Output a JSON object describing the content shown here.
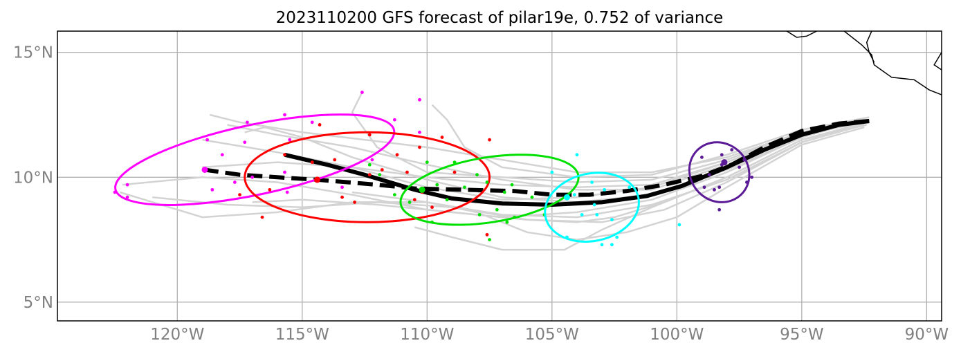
{
  "chart_data": {
    "type": "map",
    "title": "2023110200 GFS forecast of pilar19e, 0.752 of variance",
    "xlim": [
      -124.8,
      -89.4
    ],
    "ylim": [
      4.25,
      15.85
    ],
    "xticks": [
      {
        "value": -120,
        "label": "120°W"
      },
      {
        "value": -115,
        "label": "115°W"
      },
      {
        "value": -110,
        "label": "110°W"
      },
      {
        "value": -105,
        "label": "105°W"
      },
      {
        "value": -100,
        "label": "100°W"
      },
      {
        "value": -95,
        "label": "95°W"
      },
      {
        "value": -90,
        "label": "90°W"
      }
    ],
    "yticks": [
      {
        "value": 5,
        "label": "5°N"
      },
      {
        "value": 10,
        "label": "10°N"
      },
      {
        "value": 15,
        "label": "15°N"
      }
    ],
    "grid": true,
    "colors": {
      "members": "#d3d3d3",
      "tracks": "#000000",
      "clusters": [
        "#ff00ff",
        "#ff0000",
        "#00e000",
        "#00ffff",
        "#5b1a96"
      ]
    },
    "coastline": [
      [
        [
          -95.6,
          15.85
        ],
        [
          -95.2,
          15.6
        ],
        [
          -94.8,
          15.65
        ],
        [
          -94.4,
          15.85
        ]
      ],
      [
        [
          -93.3,
          15.85
        ],
        [
          -92.6,
          15.3
        ],
        [
          -92.2,
          14.9
        ],
        [
          -92.1,
          14.5
        ],
        [
          -91.4,
          14.0
        ],
        [
          -90.5,
          13.9
        ],
        [
          -89.9,
          13.5
        ],
        [
          -89.4,
          13.3
        ]
      ],
      [
        [
          -92.2,
          15.85
        ],
        [
          -92.4,
          15.4
        ],
        [
          -92.3,
          15.0
        ],
        [
          -92.1,
          14.6
        ]
      ],
      [
        [
          -89.4,
          15.0
        ],
        [
          -89.7,
          14.5
        ],
        [
          -89.4,
          14.3
        ]
      ]
    ],
    "mean_track": [
      [
        -92.3,
        12.25
      ],
      [
        -93.5,
        12.1
      ],
      [
        -95.0,
        11.7
      ],
      [
        -96.5,
        11.1
      ],
      [
        -98.0,
        10.4
      ],
      [
        -99.8,
        9.65
      ],
      [
        -101.2,
        9.25
      ],
      [
        -103.0,
        9.0
      ],
      [
        -105.0,
        8.9
      ],
      [
        -107.0,
        8.95
      ],
      [
        -109.0,
        9.15
      ],
      [
        -110.5,
        9.5
      ],
      [
        -112.5,
        10.1
      ],
      [
        -114.0,
        10.5
      ],
      [
        -115.7,
        10.9
      ]
    ],
    "operational_track": [
      [
        -92.3,
        12.25
      ],
      [
        -93.5,
        12.15
      ],
      [
        -95.0,
        11.85
      ],
      [
        -96.5,
        11.2
      ],
      [
        -97.8,
        10.5
      ],
      [
        -99.0,
        10.05
      ],
      [
        -100.5,
        9.7
      ],
      [
        -102.0,
        9.45
      ],
      [
        -103.5,
        9.3
      ],
      [
        -105.0,
        9.3
      ],
      [
        -106.5,
        9.45
      ],
      [
        -108.5,
        9.5
      ],
      [
        -110.5,
        9.55
      ],
      [
        -112.0,
        9.7
      ],
      [
        -114.4,
        9.9
      ],
      [
        -116.0,
        10.0
      ],
      [
        -117.5,
        10.1
      ],
      [
        -118.9,
        10.3
      ]
    ],
    "ensemble_members": [
      [
        [
          -92.5,
          12.2
        ],
        [
          -95,
          11.8
        ],
        [
          -98,
          10.6
        ],
        [
          -101,
          9.6
        ],
        [
          -104,
          9.2
        ],
        [
          -107,
          9.1
        ],
        [
          -110,
          9.6
        ],
        [
          -113,
          10.4
        ],
        [
          -116,
          11.0
        ],
        [
          -119,
          11.5
        ]
      ],
      [
        [
          -92.5,
          12.3
        ],
        [
          -95,
          11.6
        ],
        [
          -98,
          10.2
        ],
        [
          -101,
          9.1
        ],
        [
          -104,
          8.6
        ],
        [
          -107,
          8.4
        ],
        [
          -110,
          8.7
        ],
        [
          -113,
          9.3
        ],
        [
          -116,
          9.8
        ],
        [
          -119,
          10.0
        ],
        [
          -122.2,
          9.7
        ]
      ],
      [
        [
          -92.4,
          12.1
        ],
        [
          -95,
          11.5
        ],
        [
          -98,
          10.0
        ],
        [
          -101,
          8.8
        ],
        [
          -103,
          7.9
        ],
        [
          -104.5,
          7.1
        ],
        [
          -107,
          7.1
        ],
        [
          -109,
          7.6
        ],
        [
          -110.5,
          8.0
        ]
      ],
      [
        [
          -92.6,
          12.2
        ],
        [
          -95,
          11.7
        ],
        [
          -98,
          10.5
        ],
        [
          -101,
          9.5
        ],
        [
          -104,
          9.5
        ],
        [
          -107,
          9.9
        ],
        [
          -110,
          10.5
        ],
        [
          -113,
          11.2
        ],
        [
          -116,
          11.7
        ],
        [
          -118,
          12.1
        ]
      ],
      [
        [
          -92.3,
          12.4
        ],
        [
          -95,
          11.9
        ],
        [
          -98,
          10.9
        ],
        [
          -101,
          10.1
        ],
        [
          -104,
          10.0
        ],
        [
          -107,
          10.4
        ],
        [
          -108.5,
          11.2
        ],
        [
          -109.2,
          12.3
        ],
        [
          -109.8,
          12.9
        ]
      ],
      [
        [
          -92.5,
          12.0
        ],
        [
          -95,
          11.3
        ],
        [
          -98,
          9.6
        ],
        [
          -100,
          8.4
        ],
        [
          -102,
          7.8
        ],
        [
          -104,
          7.5
        ],
        [
          -106,
          7.8
        ],
        [
          -108,
          8.6
        ],
        [
          -110,
          9.0
        ],
        [
          -113,
          9.4
        ]
      ],
      [
        [
          -92.4,
          12.3
        ],
        [
          -95,
          11.8
        ],
        [
          -98,
          10.7
        ],
        [
          -101,
          9.9
        ],
        [
          -104,
          9.8
        ],
        [
          -107,
          10.0
        ],
        [
          -110,
          10.2
        ],
        [
          -112,
          11.2
        ],
        [
          -113,
          12.6
        ],
        [
          -112.6,
          13.4
        ]
      ],
      [
        [
          -92.5,
          12.1
        ],
        [
          -95,
          11.4
        ],
        [
          -98,
          9.9
        ],
        [
          -101,
          8.9
        ],
        [
          -104,
          8.4
        ],
        [
          -107,
          8.5
        ],
        [
          -110,
          9.0
        ],
        [
          -113,
          9.0
        ],
        [
          -116,
          8.6
        ],
        [
          -119,
          8.4
        ],
        [
          -122.3,
          9.4
        ]
      ],
      [
        [
          -92.6,
          12.3
        ],
        [
          -95,
          11.6
        ],
        [
          -98,
          10.3
        ],
        [
          -101,
          9.3
        ],
        [
          -104,
          9.0
        ],
        [
          -107,
          9.2
        ],
        [
          -110,
          9.9
        ],
        [
          -113,
          10.8
        ],
        [
          -115,
          11.6
        ],
        [
          -116.5,
          12.0
        ],
        [
          -117.3,
          11.8
        ]
      ],
      [
        [
          -92.4,
          12.2
        ],
        [
          -95,
          11.5
        ],
        [
          -98,
          10.0
        ],
        [
          -100.5,
          9.0
        ],
        [
          -102.5,
          8.4
        ],
        [
          -104,
          8.2
        ],
        [
          -106,
          8.3
        ],
        [
          -109,
          8.8
        ],
        [
          -112,
          9.0
        ],
        [
          -115,
          8.8
        ],
        [
          -118,
          8.9
        ],
        [
          -121,
          9.2
        ]
      ],
      [
        [
          -92.5,
          12.2
        ],
        [
          -95,
          11.7
        ],
        [
          -98,
          10.6
        ],
        [
          -101,
          9.7
        ],
        [
          -104,
          9.6
        ],
        [
          -107,
          9.7
        ],
        [
          -110,
          10.0
        ],
        [
          -113,
          10.4
        ],
        [
          -116,
          10.6
        ],
        [
          -119,
          10.4
        ]
      ],
      [
        [
          -92.5,
          12.1
        ],
        [
          -95,
          11.4
        ],
        [
          -98,
          9.8
        ],
        [
          -100.5,
          8.7
        ],
        [
          -103,
          8.2
        ],
        [
          -106,
          8.3
        ],
        [
          -109,
          8.6
        ],
        [
          -112,
          8.9
        ],
        [
          -115,
          9.1
        ],
        [
          -117,
          9.0
        ]
      ],
      [
        [
          -92.3,
          12.3
        ],
        [
          -95,
          11.8
        ],
        [
          -98,
          10.8
        ],
        [
          -101,
          10.2
        ],
        [
          -104,
          10.2
        ],
        [
          -107,
          10.7
        ],
        [
          -110,
          11.2
        ],
        [
          -112.5,
          11.5
        ],
        [
          -115,
          11.8
        ],
        [
          -117.5,
          12.2
        ],
        [
          -118.7,
          12.5
        ]
      ]
    ],
    "clusters": [
      {
        "cx": -116.9,
        "cy": 10.7,
        "rx": 5.7,
        "ry": 1.4,
        "angle": 12,
        "center": [
          -118.9,
          10.3
        ],
        "points": [
          [
            -122.0,
            9.7
          ],
          [
            -122.5,
            9.4
          ],
          [
            -122.0,
            9.2
          ],
          [
            -118.8,
            11.5
          ],
          [
            -117.2,
            12.2
          ],
          [
            -117.3,
            11.4
          ],
          [
            -118.2,
            10.9
          ],
          [
            -117.7,
            9.8
          ],
          [
            -117.0,
            10.0
          ],
          [
            -115.5,
            11.5
          ],
          [
            -115.7,
            12.5
          ],
          [
            -115.7,
            10.2
          ],
          [
            -114.6,
            12.2
          ],
          [
            -118.6,
            9.5
          ],
          [
            -112.6,
            13.4
          ],
          [
            -111.3,
            12.3
          ],
          [
            -110.3,
            11.8
          ],
          [
            -110.3,
            13.1
          ],
          [
            -112.2,
            10.7
          ],
          [
            -115.6,
            9.4
          ],
          [
            -113.4,
            9.6
          ]
        ]
      },
      {
        "cx": -112.4,
        "cy": 10.0,
        "rx": 4.9,
        "ry": 1.8,
        "angle": 0,
        "center": [
          -114.4,
          9.9
        ],
        "points": [
          [
            -115.7,
            10.9
          ],
          [
            -117.5,
            9.3
          ],
          [
            -116.6,
            8.4
          ],
          [
            -116.3,
            9.5
          ],
          [
            -114.6,
            10.6
          ],
          [
            -114.3,
            12.1
          ],
          [
            -113.7,
            10.7
          ],
          [
            -113.4,
            9.2
          ],
          [
            -112.9,
            9.0
          ],
          [
            -112.3,
            11.7
          ],
          [
            -111.8,
            10.3
          ],
          [
            -111.2,
            10.9
          ],
          [
            -110.8,
            10.2
          ],
          [
            -110.3,
            11.2
          ],
          [
            -110.2,
            9.4
          ],
          [
            -110.5,
            9.1
          ],
          [
            -109.8,
            8.8
          ],
          [
            -109.4,
            11.6
          ],
          [
            -108.9,
            10.2
          ],
          [
            -107.5,
            11.5
          ],
          [
            -107.6,
            7.7
          ],
          [
            -112.3,
            10.1
          ]
        ]
      },
      {
        "cx": -107.5,
        "cy": 9.5,
        "rx": 3.6,
        "ry": 1.3,
        "angle": 9,
        "center": [
          -110.2,
          9.5
        ],
        "points": [
          [
            -112.3,
            10.5
          ],
          [
            -111.9,
            10.1
          ],
          [
            -111.3,
            9.3
          ],
          [
            -110.7,
            9.0
          ],
          [
            -110.0,
            10.6
          ],
          [
            -109.8,
            8.2
          ],
          [
            -109.6,
            9.7
          ],
          [
            -109.2,
            9.1
          ],
          [
            -108.9,
            10.6
          ],
          [
            -108.5,
            9.6
          ],
          [
            -108.0,
            10.1
          ],
          [
            -107.6,
            9.8
          ],
          [
            -107.5,
            7.5
          ],
          [
            -107.2,
            8.7
          ],
          [
            -106.9,
            9.4
          ],
          [
            -106.8,
            8.2
          ],
          [
            -106.6,
            9.7
          ],
          [
            -105.8,
            9.2
          ],
          [
            -105.3,
            8.5
          ],
          [
            -107.9,
            8.5
          ],
          [
            -106.5,
            8.4
          ]
        ]
      },
      {
        "cx": -103.4,
        "cy": 8.8,
        "rx": 1.9,
        "ry": 1.35,
        "angle": 12,
        "center": [
          -104.4,
          9.2
        ],
        "points": [
          [
            -105.0,
            10.2
          ],
          [
            -104.0,
            10.9
          ],
          [
            -104.1,
            9.3
          ],
          [
            -103.8,
            8.5
          ],
          [
            -103.4,
            9.8
          ],
          [
            -103.3,
            8.9
          ],
          [
            -103.2,
            8.5
          ],
          [
            -102.9,
            9.5
          ],
          [
            -102.6,
            8.3
          ],
          [
            -102.4,
            7.6
          ],
          [
            -102.6,
            7.3
          ],
          [
            -103.0,
            7.3
          ],
          [
            -104.4,
            7.6
          ],
          [
            -101.9,
            9.6
          ],
          [
            -99.9,
            8.1
          ]
        ]
      },
      {
        "cx": -98.3,
        "cy": 10.2,
        "rx": 1.25,
        "ry": 1.15,
        "angle": -45,
        "center": [
          -98.1,
          10.6
        ],
        "points": [
          [
            -98.2,
            10.5
          ],
          [
            -98.3,
            9.6
          ],
          [
            -97.8,
            11.1
          ],
          [
            -97.3,
            10.7
          ],
          [
            -97.0,
            10.0
          ],
          [
            -97.2,
            9.8
          ],
          [
            -97.5,
            10.4
          ],
          [
            -98.7,
            10.1
          ],
          [
            -98.5,
            9.5
          ],
          [
            -98.2,
            10.9
          ],
          [
            -98.3,
            8.7
          ],
          [
            -98.9,
            9.6
          ],
          [
            -99.0,
            10.8
          ]
        ]
      }
    ]
  }
}
